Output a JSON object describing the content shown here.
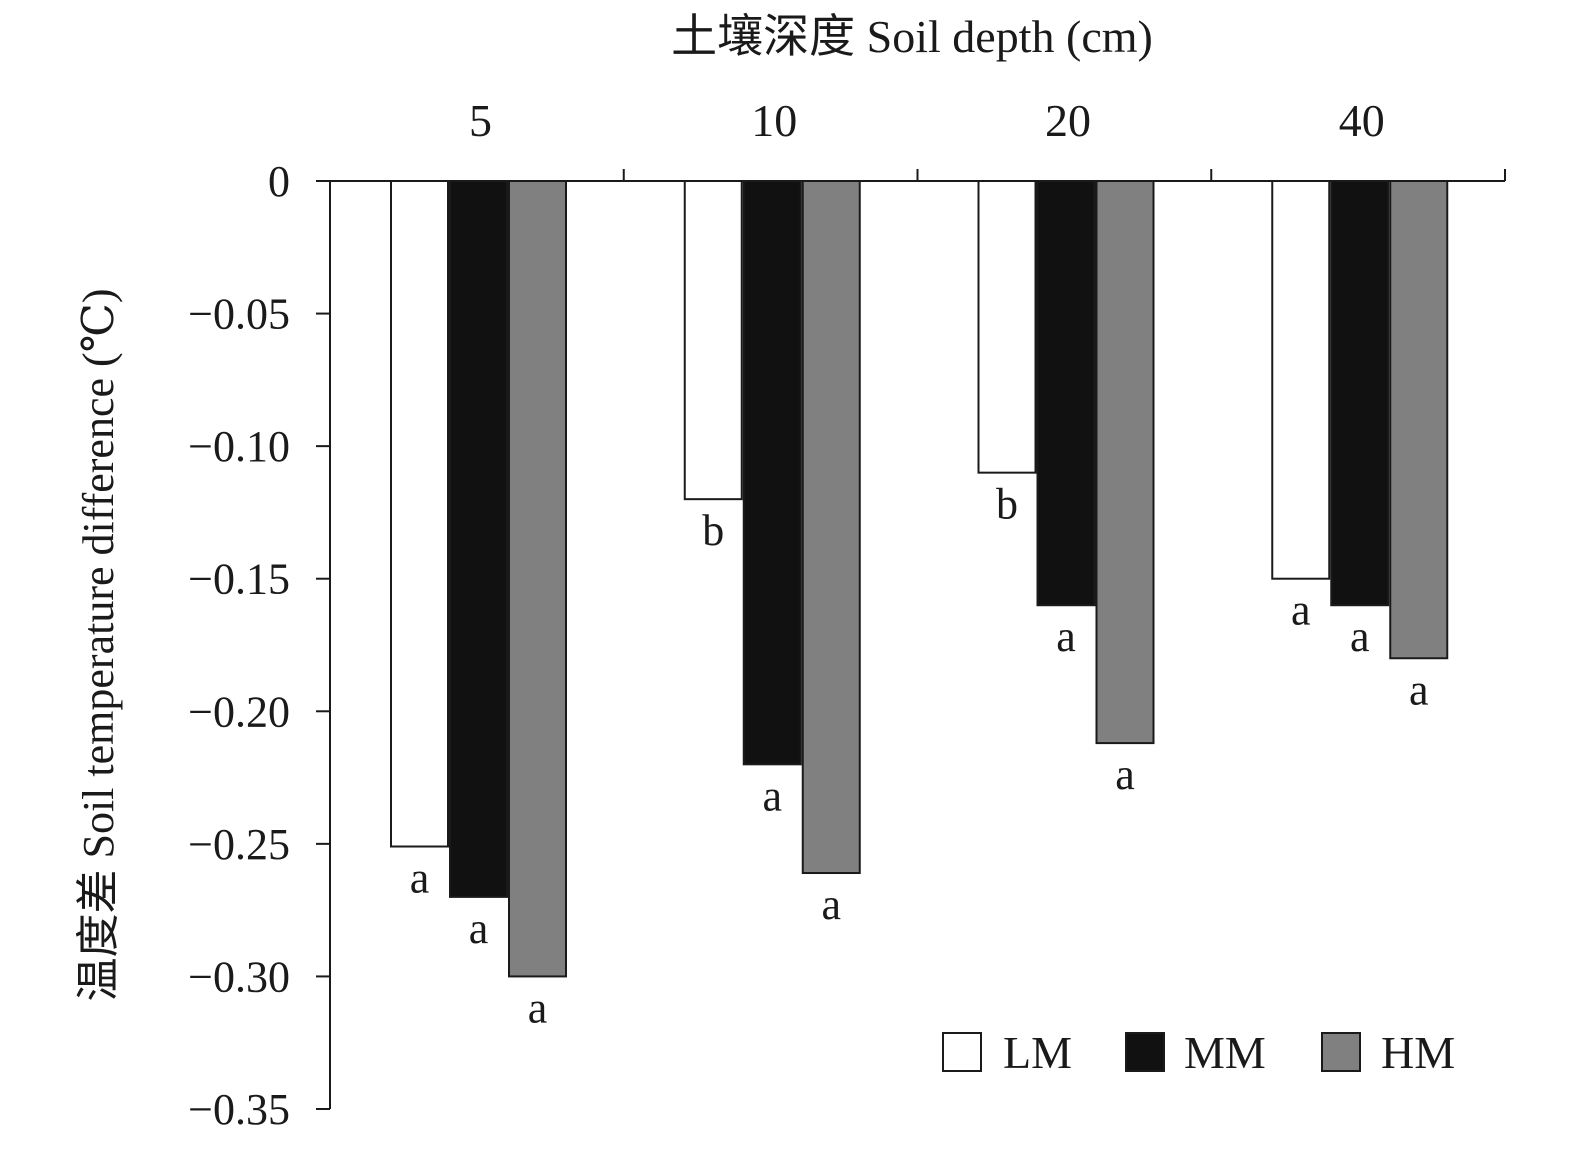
{
  "chart_data": {
    "type": "bar",
    "xlabel": "土壤深度 Soil depth (cm)",
    "ylabel": "温度差 Soil temperature difference (℃)",
    "categories": [
      "5",
      "10",
      "20",
      "40"
    ],
    "ylim": [
      -0.35,
      0
    ],
    "yticks": [
      0,
      -0.05,
      -0.1,
      -0.15,
      -0.2,
      -0.25,
      -0.3,
      -0.35
    ],
    "ytick_labels": [
      "0",
      "−0.05",
      "−0.10",
      "−0.15",
      "−0.20",
      "−0.25",
      "−0.30",
      "−0.35"
    ],
    "legend_position": "bottom-right",
    "grid": false,
    "series": [
      {
        "name": "LM",
        "color": "#ffffff",
        "values": [
          -0.251,
          -0.12,
          -0.11,
          -0.15
        ],
        "letters": [
          "a",
          "b",
          "b",
          "a"
        ]
      },
      {
        "name": "MM",
        "color": "#111111",
        "values": [
          -0.27,
          -0.22,
          -0.16,
          -0.16
        ],
        "letters": [
          "a",
          "a",
          "a",
          "a"
        ]
      },
      {
        "name": "HM",
        "color": "#808080",
        "values": [
          -0.3,
          -0.261,
          -0.212,
          -0.18
        ],
        "letters": [
          "a",
          "a",
          "a",
          "a"
        ]
      }
    ]
  }
}
